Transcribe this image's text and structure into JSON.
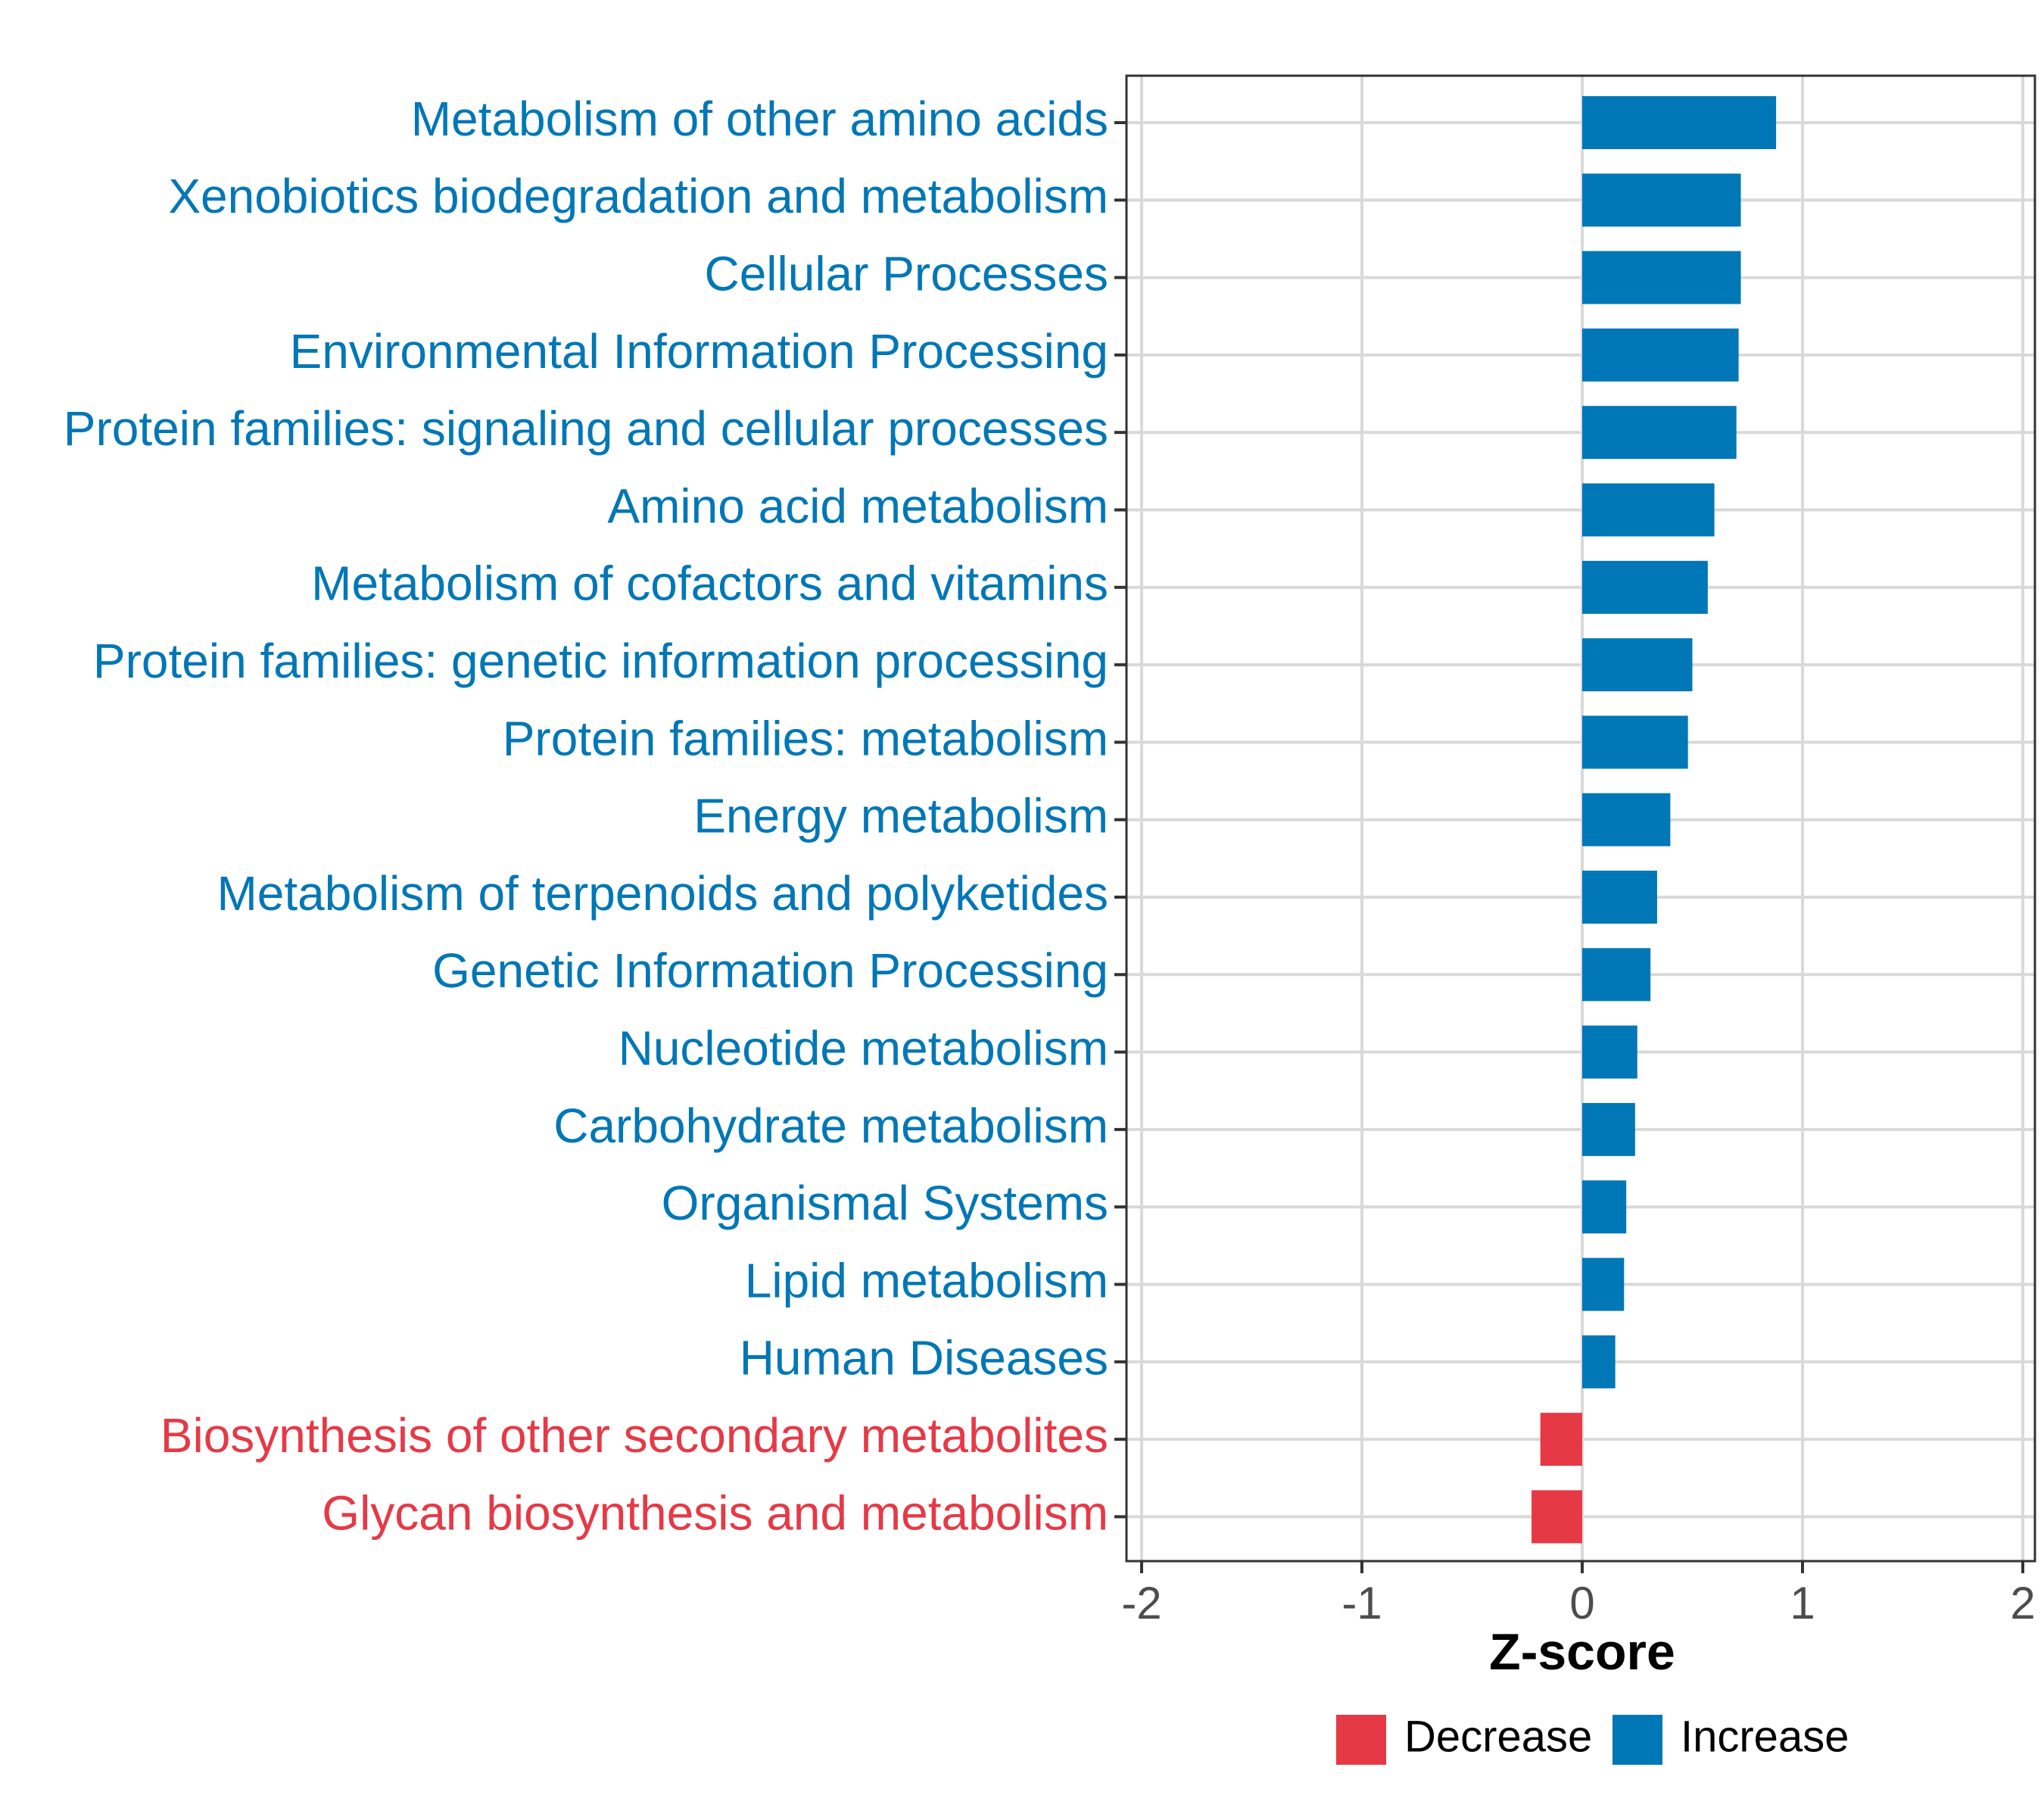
{
  "chart_data": {
    "type": "bar",
    "orientation": "horizontal",
    "xlabel": "Z-score",
    "xlim": [
      -2,
      2
    ],
    "xticks": [
      -2,
      -1,
      0,
      1,
      2
    ],
    "xtick_labels": [
      "-2",
      "-1",
      "0",
      "1",
      "2"
    ],
    "grid": true,
    "legend_position": "bottom",
    "categories": [
      "Metabolism of other amino acids",
      "Xenobiotics biodegradation and metabolism",
      "Cellular Processes",
      "Environmental Information Processing",
      "Protein families: signaling and cellular processes",
      "Amino acid metabolism",
      "Metabolism of cofactors and vitamins",
      "Protein families: genetic information processing",
      "Protein families: metabolism",
      "Energy metabolism",
      "Metabolism of terpenoids and polyketides",
      "Genetic Information Processing",
      "Nucleotide metabolism",
      "Carbohydrate metabolism",
      "Organismal Systems",
      "Lipid metabolism",
      "Human Diseases",
      "Biosynthesis of other secondary metabolites",
      "Glycan biosynthesis and metabolism"
    ],
    "values": [
      0.88,
      0.72,
      0.72,
      0.71,
      0.7,
      0.6,
      0.57,
      0.5,
      0.48,
      0.4,
      0.34,
      0.31,
      0.25,
      0.24,
      0.2,
      0.19,
      0.15,
      -0.19,
      -0.23
    ],
    "groups": [
      "Increase",
      "Increase",
      "Increase",
      "Increase",
      "Increase",
      "Increase",
      "Increase",
      "Increase",
      "Increase",
      "Increase",
      "Increase",
      "Increase",
      "Increase",
      "Increase",
      "Increase",
      "Increase",
      "Increase",
      "Decrease",
      "Decrease"
    ],
    "legend": [
      {
        "label": "Decrease",
        "color": "#e63946"
      },
      {
        "label": "Increase",
        "color": "#0077b6"
      }
    ],
    "colors": {
      "Increase": "#0077b6",
      "Decrease": "#e63946"
    }
  }
}
